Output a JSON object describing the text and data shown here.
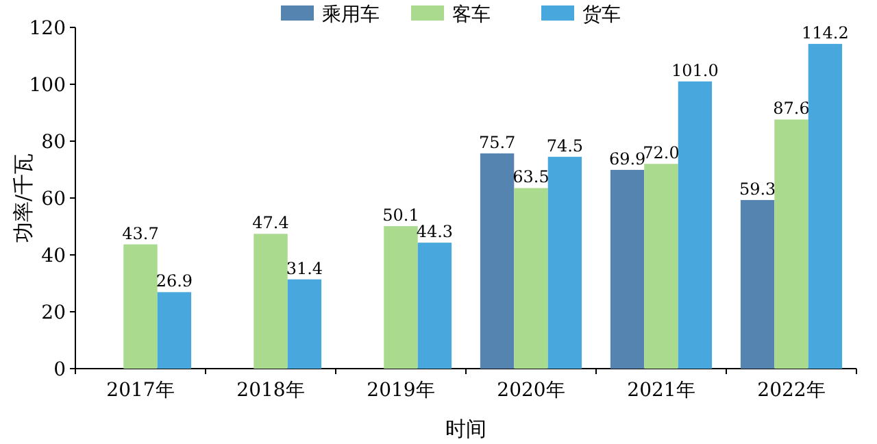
{
  "chart_data": {
    "type": "bar",
    "xlabel": "时间",
    "ylabel": "功率/千瓦",
    "categories": [
      "2017年",
      "2018年",
      "2019年",
      "2020年",
      "2021年",
      "2022年"
    ],
    "series": [
      {
        "name": "乘用车",
        "color": "#5584b0",
        "values": [
          null,
          null,
          null,
          75.7,
          69.9,
          59.3
        ],
        "value_labels": [
          null,
          null,
          null,
          "75.7",
          "69.9",
          "59.3"
        ]
      },
      {
        "name": "客车",
        "color": "#a9da8e",
        "values": [
          43.7,
          47.4,
          50.1,
          63.5,
          72.0,
          87.6
        ],
        "value_labels": [
          "43.7",
          "47.4",
          "50.1",
          "63.5",
          "72.0",
          "87.6"
        ]
      },
      {
        "name": "货车",
        "color": "#48a8dd",
        "values": [
          26.9,
          31.4,
          44.3,
          74.5,
          101.0,
          114.2
        ],
        "value_labels": [
          "26.9",
          "31.4",
          "44.3",
          "74.5",
          "101.0",
          "114.2"
        ]
      }
    ],
    "ylim": [
      0,
      120
    ],
    "yticks": [
      0,
      20,
      40,
      60,
      80,
      100,
      120
    ],
    "grid": false,
    "legend": "top"
  }
}
